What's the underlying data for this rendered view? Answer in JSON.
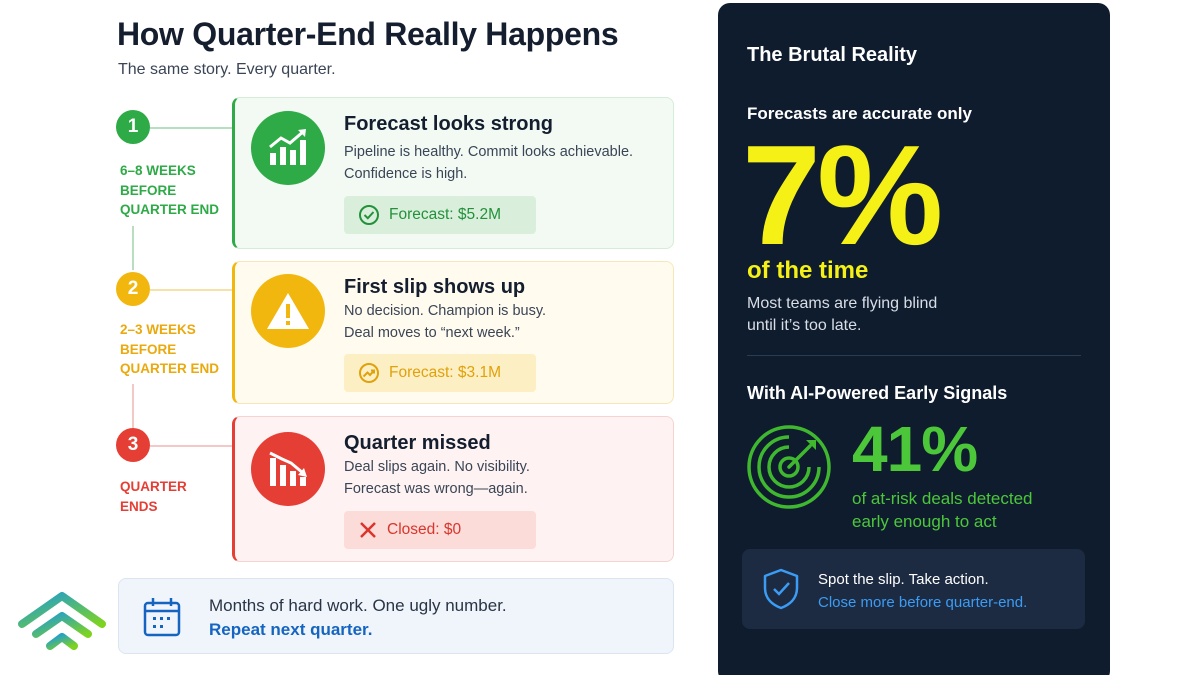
{
  "page": {
    "title": "How Quarter-End Really Happens",
    "subtitle": "The same story. Every quarter."
  },
  "steps": [
    {
      "number": "1",
      "timing": "6–8 weeks\nbefore\nquarter end",
      "title": "Forecast looks strong",
      "description": "Pipeline is healthy. Commit looks achievable.\nConfidence is high.",
      "badge": "Forecast: $5.2M",
      "icon": "chart-up-icon",
      "badge_icon": "check-circle-icon",
      "color": "#2eaa47"
    },
    {
      "number": "2",
      "timing": "2–3 weeks\nbefore\nquarter end",
      "title": "First slip shows up",
      "description": "No decision. Champion is busy.\nDeal moves to “next week.”",
      "badge": "Forecast: $3.1M",
      "icon": "warning-icon",
      "badge_icon": "trend-circle-icon",
      "color": "#f2b70f"
    },
    {
      "number": "3",
      "timing": "Quarter\nends",
      "title": "Quarter missed",
      "description": "Deal slips again. No visibility.\nForecast was wrong—again.",
      "badge": "Closed: $0",
      "icon": "chart-down-icon",
      "badge_icon": "x-icon",
      "color": "#e53e35"
    }
  ],
  "note": {
    "icon": "calendar-icon",
    "line1": "Months of hard work. One ugly number.",
    "line2": "Repeat next quarter."
  },
  "panel": {
    "title": "The Brutal Reality",
    "lead": "Forecasts are accurate only",
    "big_stat": "7%",
    "big_stat_label": "of the time",
    "description": "Most teams are flying blind\nuntil it’s too late.",
    "ai_heading": "With AI-Powered Early Signals",
    "ai_icon": "radar-target-icon",
    "ai_stat": "41%",
    "ai_stat_desc": "of at-risk deals detected\nearly enough to act",
    "cta_icon": "shield-check-icon",
    "cta_line1": "Spot the slip. Take action.",
    "cta_line2": "Close more before quarter-end."
  },
  "colors": {
    "panel_bg": "#0f1c2e",
    "highlight_yellow": "#f5f016",
    "highlight_green": "#4cc73a",
    "link_blue": "#1565c0"
  },
  "logo": {
    "icon": "brand-logo-icon"
  }
}
